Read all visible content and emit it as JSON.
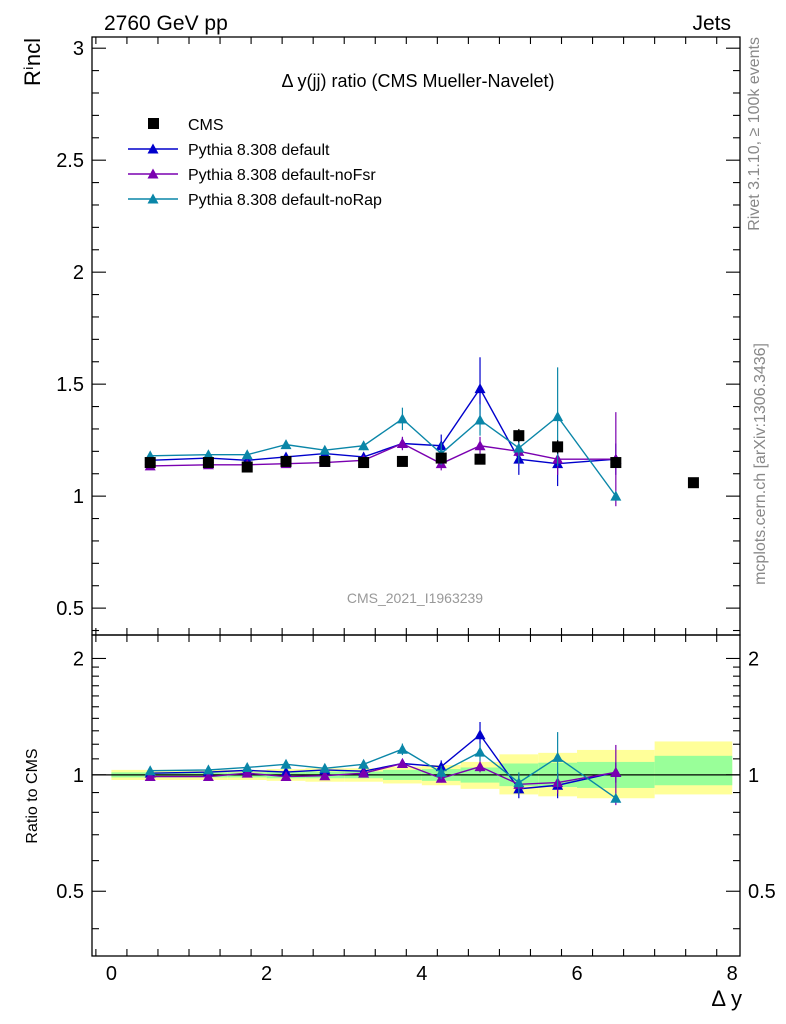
{
  "header": {
    "left": "2760 GeV pp",
    "right": "Jets"
  },
  "side_labels": {
    "top": "Rivet 3.1.10, ≥ 100k events",
    "bottom": "mcplots.cern.ch [arXiv:1306.3436]"
  },
  "watermark": "CMS_2021_I1963239",
  "colors": {
    "data": "#000000",
    "default": "#0000cc",
    "noFsr": "#7a00b0",
    "noRap": "#0a86a8",
    "band_outer": "#ffff99",
    "band_inner": "#99ff99"
  },
  "chart_data": [
    {
      "type": "line",
      "title": "Δ y(jj) ratio (CMS Mueller-Navelet)",
      "xlabel": "",
      "ylabel": "Rⁱncl",
      "xlim": [
        -0.25,
        8.1
      ],
      "ylim": [
        0.38,
        3.05
      ],
      "yticks": [
        0.5,
        1,
        1.5,
        2,
        2.5,
        3
      ],
      "yticklabels": [
        "0.5",
        "1",
        "1.5",
        "2",
        "2.5",
        "3"
      ],
      "legend_position": "top-left",
      "data_series": {
        "name": "CMS",
        "x": [
          0.5,
          1.25,
          1.75,
          2.25,
          2.75,
          3.25,
          3.75,
          4.25,
          4.75,
          5.25,
          5.75,
          6.5,
          7.5
        ],
        "y": [
          1.15,
          1.15,
          1.13,
          1.155,
          1.155,
          1.15,
          1.155,
          1.17,
          1.165,
          1.27,
          1.22,
          1.15,
          1.06
        ],
        "yerr": [
          0,
          0,
          0,
          0,
          0,
          0,
          0,
          0,
          0,
          0.03,
          0.03,
          0,
          0
        ]
      },
      "series": [
        {
          "name": "Pythia 8.308 default",
          "color_key": "default",
          "x": [
            0.5,
            1.25,
            1.75,
            2.25,
            2.75,
            3.25,
            3.75,
            4.25,
            4.75,
            5.25,
            5.75,
            6.5
          ],
          "y": [
            1.16,
            1.17,
            1.16,
            1.175,
            1.19,
            1.175,
            1.235,
            1.225,
            1.48,
            1.165,
            1.145,
            1.165
          ],
          "yerr": [
            0.01,
            0.01,
            0.01,
            0.015,
            0.015,
            0.02,
            0.025,
            0.05,
            0.14,
            0.07,
            0.1,
            0.07
          ]
        },
        {
          "name": "Pythia 8.308 default-noFsr",
          "color_key": "noFsr",
          "x": [
            0.5,
            1.25,
            1.75,
            2.25,
            2.75,
            3.25,
            3.75,
            4.25,
            4.75,
            5.25,
            5.75,
            6.5
          ],
          "y": [
            1.135,
            1.14,
            1.14,
            1.145,
            1.15,
            1.16,
            1.235,
            1.145,
            1.225,
            1.2,
            1.165,
            1.165
          ],
          "yerr": [
            0.01,
            0.01,
            0.01,
            0.01,
            0.015,
            0.02,
            0.03,
            0.03,
            0.04,
            0.06,
            0.07,
            0.21
          ]
        },
        {
          "name": "Pythia 8.308 default-noRap",
          "color_key": "noRap",
          "x": [
            0.5,
            1.25,
            1.75,
            2.25,
            2.75,
            3.25,
            3.75,
            4.25,
            4.75,
            5.25,
            5.75,
            6.5
          ],
          "y": [
            1.18,
            1.185,
            1.185,
            1.23,
            1.205,
            1.225,
            1.345,
            1.19,
            1.34,
            1.215,
            1.355,
            1.0
          ],
          "yerr": [
            0.01,
            0.01,
            0.01,
            0.015,
            0.015,
            0.02,
            0.05,
            0.05,
            0.07,
            0.07,
            0.22,
            0
          ]
        }
      ]
    },
    {
      "type": "line",
      "xlabel": "Δ y",
      "ylabel": "Ratio to CMS",
      "xlim": [
        -0.25,
        8.1
      ],
      "ylim": [
        0.34,
        2.3
      ],
      "log_y": true,
      "yticks": [
        0.5,
        1,
        2
      ],
      "yticklabels": [
        "0.5",
        "1",
        "2"
      ],
      "xticks": [
        0,
        2,
        4,
        6,
        8
      ],
      "xticklabels": [
        "0",
        "2",
        "4",
        "6",
        "8"
      ],
      "band": {
        "edges": [
          0,
          1,
          1.5,
          2,
          2.5,
          3,
          3.5,
          4,
          4.5,
          5,
          5.5,
          6,
          7,
          8
        ],
        "outer_lo": [
          0.97,
          0.97,
          0.97,
          0.965,
          0.96,
          0.96,
          0.95,
          0.94,
          0.92,
          0.89,
          0.88,
          0.87,
          0.89
        ],
        "outer_hi": [
          1.03,
          1.03,
          1.03,
          1.035,
          1.04,
          1.04,
          1.05,
          1.06,
          1.08,
          1.13,
          1.14,
          1.16,
          1.22
        ],
        "inner_lo": [
          0.985,
          0.985,
          0.985,
          0.98,
          0.98,
          0.98,
          0.97,
          0.965,
          0.955,
          0.935,
          0.93,
          0.925,
          0.94
        ],
        "inner_hi": [
          1.015,
          1.015,
          1.015,
          1.02,
          1.02,
          1.02,
          1.03,
          1.035,
          1.045,
          1.07,
          1.075,
          1.08,
          1.12
        ]
      },
      "series": [
        {
          "name": "Pythia 8.308 default",
          "color_key": "default",
          "x": [
            0.5,
            1.25,
            1.75,
            2.25,
            2.75,
            3.25,
            3.75,
            4.25,
            4.75,
            5.25,
            5.75,
            6.5
          ],
          "y": [
            1.01,
            1.017,
            1.027,
            1.017,
            1.03,
            1.022,
            1.07,
            1.05,
            1.27,
            0.92,
            0.94,
            1.015
          ],
          "yerr": [
            0.01,
            0.01,
            0.01,
            0.015,
            0.015,
            0.02,
            0.025,
            0.04,
            0.1,
            0.05,
            0.07,
            0.06
          ]
        },
        {
          "name": "Pythia 8.308 default-noFsr",
          "color_key": "noFsr",
          "x": [
            0.5,
            1.25,
            1.75,
            2.25,
            2.75,
            3.25,
            3.75,
            4.25,
            4.75,
            5.25,
            5.75,
            6.5
          ],
          "y": [
            0.99,
            0.99,
            1.01,
            0.99,
            0.995,
            1.01,
            1.07,
            0.98,
            1.05,
            0.945,
            0.955,
            1.015
          ],
          "yerr": [
            0.01,
            0.01,
            0.01,
            0.01,
            0.015,
            0.02,
            0.025,
            0.025,
            0.035,
            0.05,
            0.06,
            0.18
          ]
        },
        {
          "name": "Pythia 8.308 default-noRap",
          "color_key": "noRap",
          "x": [
            0.5,
            1.25,
            1.75,
            2.25,
            2.75,
            3.25,
            3.75,
            4.25,
            4.75,
            5.25,
            5.75,
            6.5
          ],
          "y": [
            1.025,
            1.03,
            1.045,
            1.065,
            1.04,
            1.065,
            1.165,
            1.015,
            1.145,
            0.955,
            1.11,
            0.87
          ],
          "yerr": [
            0.01,
            0.01,
            0.01,
            0.015,
            0.015,
            0.02,
            0.04,
            0.04,
            0.06,
            0.06,
            0.18,
            0
          ]
        }
      ]
    }
  ]
}
